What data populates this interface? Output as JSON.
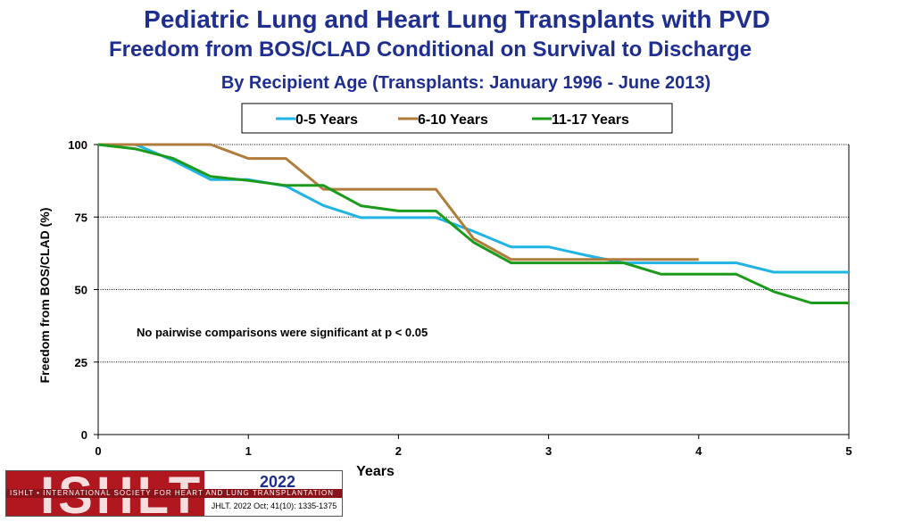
{
  "header": {
    "title": "Pediatric Lung and Heart Lung Transplants with PVD",
    "subtitle": "Freedom from BOS/CLAD Conditional on Survival to Discharge",
    "subtitle2": "By Recipient Age (Transplants: January 1996 - June 2013)"
  },
  "footer": {
    "logo_text": "ISHLT",
    "band_text": "ISHLT • INTERNATIONAL SOCIETY FOR HEART AND LUNG TRANSPLANTATION",
    "year": "2022",
    "citation": "JHLT. 2022 Oct; 41(10): 1335-1375"
  },
  "chart_data": {
    "type": "line",
    "title": "Pediatric Lung and Heart Lung Transplants with PVD",
    "xlabel": "Years",
    "ylabel": "Freedom from BOS/CLAD (%)",
    "xlim": [
      0,
      5
    ],
    "ylim": [
      0,
      100
    ],
    "xticks": [
      0,
      1,
      2,
      3,
      4,
      5
    ],
    "yticks": [
      0,
      25,
      50,
      75,
      100
    ],
    "grid": "horizontal dotted",
    "legend_position": "top-center",
    "annotation": "No pairwise comparisons were significant at p < 0.05",
    "series": [
      {
        "name": "0-5 Years",
        "color": "#1fb4e3",
        "x": [
          0,
          0.25,
          0.5,
          0.75,
          1,
          1.25,
          1.5,
          1.75,
          2,
          2.25,
          2.5,
          2.75,
          3,
          3.25,
          3.5,
          3.75,
          4,
          4.25,
          4.5,
          4.75,
          5
        ],
        "y": [
          100,
          100,
          94.5,
          87.9,
          87.9,
          85.7,
          79,
          74.8,
          74.8,
          74.8,
          70.1,
          64.7,
          64.7,
          61.8,
          59.2,
          59.2,
          59.2,
          59.2,
          56,
          56,
          56
        ]
      },
      {
        "name": "6-10 Years",
        "color": "#b07c3c",
        "x": [
          0,
          0.25,
          0.5,
          0.75,
          1,
          1.25,
          1.5,
          1.75,
          2,
          2.25,
          2.5,
          2.75,
          3,
          3.25,
          3.5,
          3.75,
          4
        ],
        "y": [
          100,
          100,
          100,
          100,
          95.2,
          95.2,
          84.6,
          84.6,
          84.6,
          84.6,
          67.6,
          60.4,
          60.4,
          60.4,
          60.4,
          60.4,
          60.4
        ]
      },
      {
        "name": "11-17 Years",
        "color": "#1c9a1c",
        "x": [
          0,
          0.25,
          0.5,
          0.75,
          1,
          1.25,
          1.5,
          1.75,
          2,
          2.25,
          2.5,
          2.75,
          3,
          3.25,
          3.5,
          3.75,
          4,
          4.25,
          4.5,
          4.75,
          5
        ],
        "y": [
          100,
          98.5,
          95.2,
          89,
          87.6,
          85.9,
          85.9,
          78.9,
          77.1,
          77.1,
          66.3,
          59.2,
          59.2,
          59.2,
          59.2,
          55.3,
          55.3,
          55.3,
          49.3,
          45.4,
          45.4
        ]
      }
    ]
  }
}
